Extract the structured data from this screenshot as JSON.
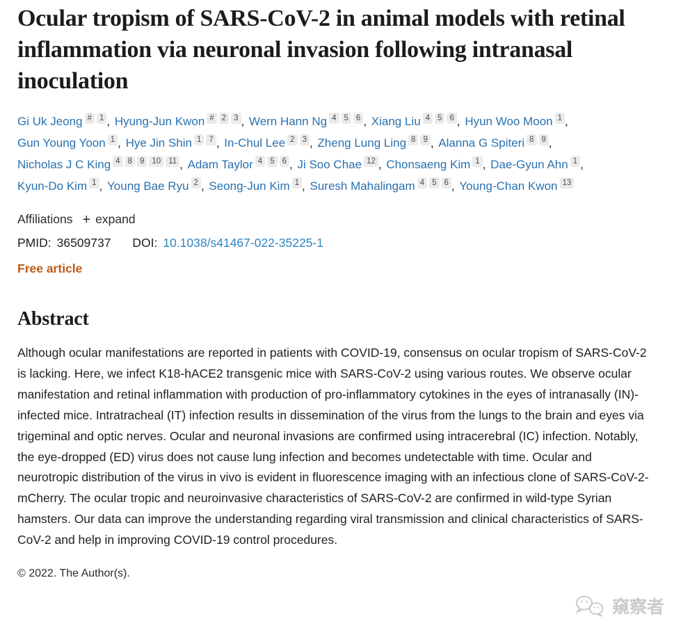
{
  "article": {
    "title": "Ocular tropism of SARS-CoV-2 in animal models with retinal inflammation via neuronal invasion following intranasal inoculation",
    "authors": [
      {
        "name": "Gi Uk Jeong",
        "sups": [
          "#",
          "1"
        ]
      },
      {
        "name": "Hyung-Jun Kwon",
        "sups": [
          "#",
          "2",
          "3"
        ]
      },
      {
        "name": "Wern Hann Ng",
        "sups": [
          "4",
          "5",
          "6"
        ]
      },
      {
        "name": "Xiang Liu",
        "sups": [
          "4",
          "5",
          "6"
        ]
      },
      {
        "name": "Hyun Woo Moon",
        "sups": [
          "1"
        ]
      },
      {
        "name": "Gun Young Yoon",
        "sups": [
          "1"
        ]
      },
      {
        "name": "Hye Jin Shin",
        "sups": [
          "1",
          "7"
        ]
      },
      {
        "name": "In-Chul Lee",
        "sups": [
          "2",
          "3"
        ]
      },
      {
        "name": "Zheng Lung Ling",
        "sups": [
          "8",
          "9"
        ]
      },
      {
        "name": "Alanna G Spiteri",
        "sups": [
          "8",
          "9"
        ]
      },
      {
        "name": "Nicholas J C King",
        "sups": [
          "4",
          "8",
          "9",
          "10",
          "11"
        ]
      },
      {
        "name": "Adam Taylor",
        "sups": [
          "4",
          "5",
          "6"
        ]
      },
      {
        "name": "Ji Soo Chae",
        "sups": [
          "12"
        ]
      },
      {
        "name": "Chonsaeng Kim",
        "sups": [
          "1"
        ]
      },
      {
        "name": "Dae-Gyun Ahn",
        "sups": [
          "1"
        ]
      },
      {
        "name": "Kyun-Do Kim",
        "sups": [
          "1"
        ]
      },
      {
        "name": "Young Bae Ryu",
        "sups": [
          "2"
        ]
      },
      {
        "name": "Seong-Jun Kim",
        "sups": [
          "1"
        ]
      },
      {
        "name": "Suresh Mahalingam",
        "sups": [
          "4",
          "5",
          "6"
        ]
      },
      {
        "name": "Young-Chan Kwon",
        "sups": [
          "13"
        ]
      }
    ],
    "affiliations_label": "Affiliations",
    "expand_plus": "+",
    "expand_label": "expand",
    "pmid_label": "PMID:",
    "pmid": "36509737",
    "doi_label": "DOI:",
    "doi": "10.1038/s41467-022-35225-1",
    "free_article_label": "Free article",
    "abstract_heading": "Abstract",
    "abstract_text": "Although ocular manifestations are reported in patients with COVID-19, consensus on ocular tropism of SARS-CoV-2 is lacking. Here, we infect K18-hACE2 transgenic mice with SARS-CoV-2 using various routes. We observe ocular manifestation and retinal inflammation with production of pro-inflammatory cytokines in the eyes of intranasally (IN)-infected mice. Intratracheal (IT) infection results in dissemination of the virus from the lungs to the brain and eyes via trigeminal and optic nerves. Ocular and neuronal invasions are confirmed using intracerebral (IC) infection. Notably, the eye-dropped (ED) virus does not cause lung infection and becomes undetectable with time. Ocular and neurotropic distribution of the virus in vivo is evident in fluorescence imaging with an infectious clone of SARS-CoV-2-mCherry. The ocular tropic and neuroinvasive characteristics of SARS-CoV-2 are confirmed in wild-type Syrian hamsters. Our data can improve the understanding regarding viral transmission and clinical characteristics of SARS-CoV-2 and help in improving COVID-19 control procedures.",
    "copyright": "© 2022. The Author(s)."
  },
  "watermark": {
    "text": "窺察者",
    "icon": "wechat-logo"
  },
  "colors": {
    "author_link_blue": "#2a71ae",
    "doi_link_blue": "#2e86c4",
    "free_article_orange": "#bf5b16",
    "superscript_chip_bg": "#ebebeb",
    "heading_text": "#1b1c1d",
    "body_text": "#1f1f1f",
    "watermark_gray": "#cbcbcb"
  }
}
